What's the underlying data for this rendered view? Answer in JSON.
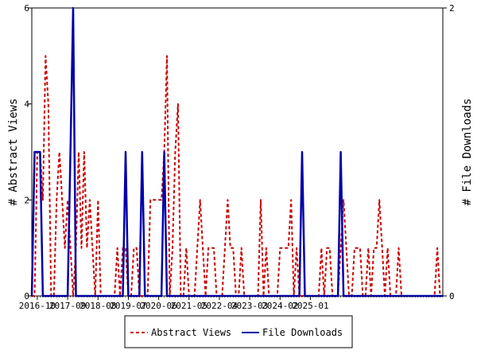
{
  "chart_data": {
    "type": "line",
    "title": "",
    "xlabel": "",
    "y_left_label": "# Abstract Views",
    "y_right_label": "# File Downloads",
    "x_start": "2016-08",
    "x_tick_labels": [
      "2016-10",
      "2017-09",
      "2018-08",
      "2019-07",
      "2020-06",
      "2021-05",
      "2022-04",
      "2023-03",
      "2024-02",
      "2025-01"
    ],
    "x_tick_step_months": 11,
    "y_left_lim": [
      0,
      6
    ],
    "y_left_ticks": [
      "0",
      "2",
      "4",
      "6"
    ],
    "y_right_lim": [
      0,
      2
    ],
    "y_right_ticks": [
      "0",
      "2"
    ],
    "grid": false,
    "legend_position": "bottom",
    "series": [
      {
        "name": "Abstract Views",
        "axis": "left",
        "color": "#cc0000",
        "dash": "dashed",
        "values": [
          0,
          0,
          3,
          3,
          2,
          5,
          4,
          0,
          0,
          2,
          3,
          2,
          1,
          2,
          1,
          0,
          1,
          3,
          1,
          3,
          1,
          2,
          1,
          0,
          2,
          0,
          0,
          0,
          0,
          0,
          0,
          1,
          0,
          1,
          1,
          0,
          0,
          1,
          1,
          0,
          0,
          0,
          0,
          2,
          2,
          2,
          2,
          2,
          3,
          5,
          0,
          1,
          3,
          4,
          0,
          0,
          1,
          0,
          0,
          0,
          1,
          2,
          1,
          0,
          1,
          1,
          1,
          0,
          0,
          0,
          1,
          2,
          1,
          1,
          0,
          0,
          1,
          0,
          0,
          0,
          0,
          0,
          0,
          2,
          0,
          1,
          0,
          0,
          0,
          0,
          1,
          1,
          1,
          1,
          2,
          0,
          1,
          0,
          0,
          0,
          0,
          0,
          0,
          0,
          0,
          1,
          0,
          1,
          1,
          0,
          0,
          0,
          1,
          2,
          1,
          0,
          0,
          1,
          1,
          1,
          0,
          0,
          1,
          0,
          1,
          1,
          2,
          1,
          0,
          1,
          0,
          0,
          0,
          1,
          0,
          0,
          0,
          0,
          0,
          0,
          0,
          0,
          0,
          0,
          0,
          0,
          0,
          1,
          0,
          0
        ]
      },
      {
        "name": "File Downloads",
        "axis": "right",
        "color": "#0000aa",
        "dash": "solid",
        "values": [
          0,
          1,
          1,
          1,
          0,
          0,
          0,
          0,
          0,
          0,
          0,
          0,
          0,
          0,
          1,
          2,
          0,
          0,
          0,
          0,
          0,
          0,
          0,
          0,
          0,
          0,
          0,
          0,
          0,
          0,
          0,
          0,
          0,
          0,
          1,
          0,
          0,
          0,
          0,
          0,
          1,
          0,
          0,
          0,
          0,
          0,
          0,
          0,
          1,
          0,
          0,
          0,
          0,
          0,
          0,
          0,
          0,
          0,
          0,
          0,
          0,
          0,
          0,
          0,
          0,
          0,
          0,
          0,
          0,
          0,
          0,
          0,
          0,
          0,
          0,
          0,
          0,
          0,
          0,
          0,
          0,
          0,
          0,
          0,
          0,
          0,
          0,
          0,
          0,
          0,
          0,
          0,
          0,
          0,
          0,
          0,
          0,
          0,
          1,
          0,
          0,
          0,
          0,
          0,
          0,
          0,
          0,
          0,
          0,
          0,
          0,
          0,
          1,
          0,
          0,
          0,
          0,
          0,
          0,
          0,
          0,
          0,
          0,
          0,
          0,
          0,
          0,
          0,
          0,
          0,
          0,
          0,
          0,
          0,
          0,
          0,
          0,
          0,
          0,
          0,
          0,
          0,
          0,
          0,
          0,
          0,
          0,
          0,
          0,
          0
        ]
      }
    ]
  }
}
